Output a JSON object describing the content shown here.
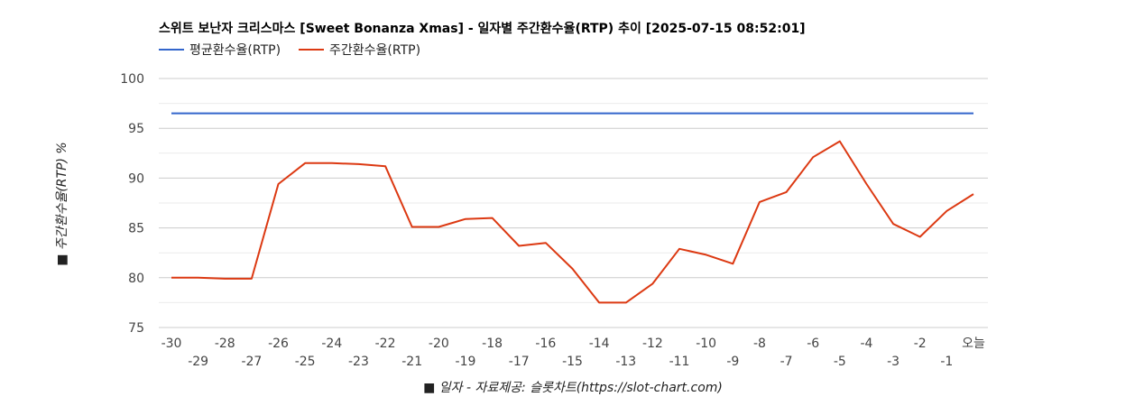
{
  "chart_data": {
    "type": "line",
    "title": "스위트 보난자 크리스마스 [Sweet Bonanza Xmas] - 일자별 주간환수율(RTP) 추이 [2025-07-15 08:52:01]",
    "xlabel": "■ 일자 - 자료제공: 슬롯차트(https://slot-chart.com)",
    "ylabel": "■ 주간환수율(RTP) %",
    "x": [
      "-30",
      "-29",
      "-28",
      "-27",
      "-26",
      "-25",
      "-24",
      "-23",
      "-22",
      "-21",
      "-20",
      "-19",
      "-18",
      "-17",
      "-16",
      "-15",
      "-14",
      "-13",
      "-12",
      "-11",
      "-10",
      "-9",
      "-8",
      "-7",
      "-6",
      "-5",
      "-4",
      "-3",
      "-2",
      "-1",
      "오늘"
    ],
    "yticks": [
      75,
      80,
      85,
      90,
      95,
      100
    ],
    "ylim": [
      75,
      100
    ],
    "grid": true,
    "legend_position": "top-left",
    "series": [
      {
        "name": "평균환수율(RTP)",
        "color": "#3366cc",
        "values": [
          96.5,
          96.5,
          96.5,
          96.5,
          96.5,
          96.5,
          96.5,
          96.5,
          96.5,
          96.5,
          96.5,
          96.5,
          96.5,
          96.5,
          96.5,
          96.5,
          96.5,
          96.5,
          96.5,
          96.5,
          96.5,
          96.5,
          96.5,
          96.5,
          96.5,
          96.5,
          96.5,
          96.5,
          96.5,
          96.5,
          96.5
        ]
      },
      {
        "name": "주간환수율(RTP)",
        "color": "#dc3912",
        "values": [
          80.0,
          80.0,
          79.9,
          79.9,
          89.4,
          91.5,
          91.5,
          91.4,
          91.2,
          85.1,
          85.1,
          85.9,
          86.0,
          83.2,
          83.5,
          80.9,
          77.5,
          77.5,
          79.4,
          82.9,
          82.3,
          81.4,
          87.6,
          88.6,
          92.1,
          93.7,
          89.4,
          85.4,
          84.1,
          86.7,
          88.4
        ]
      }
    ]
  }
}
